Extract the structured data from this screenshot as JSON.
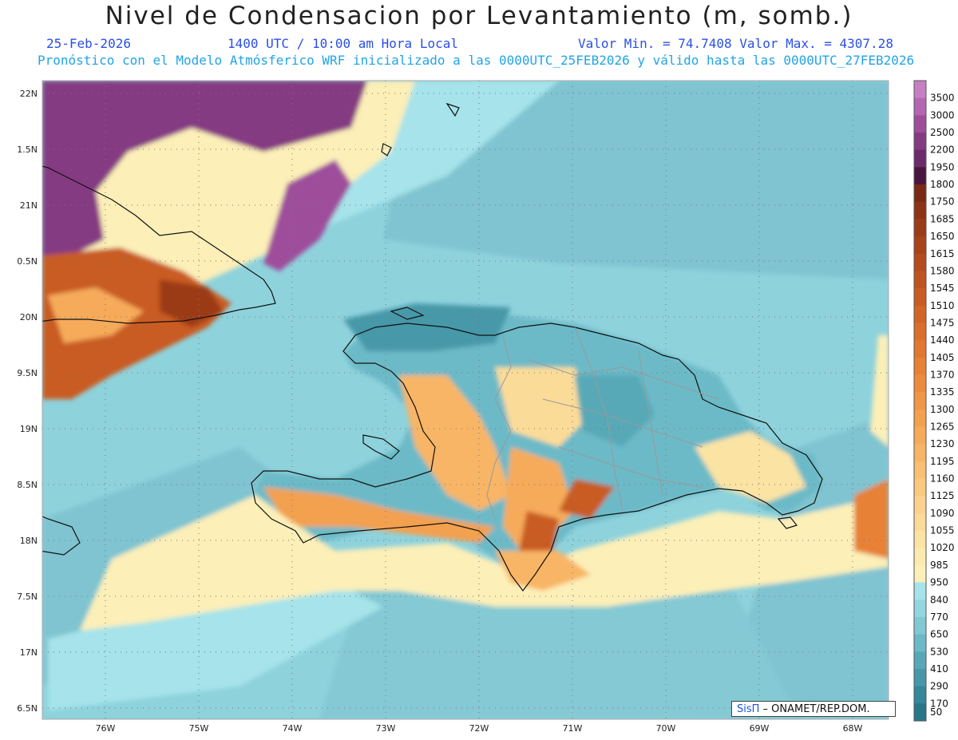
{
  "title": "Nivel de Condensacion por Levantamiento (m, somb.)",
  "date": "25-Feb-2026",
  "time": "1400 UTC / 10:00 am Hora Local",
  "minmax": "Valor Min. = 74.7408  Valor Max. = 4307.28",
  "subtitle": "Pronóstico con el Modelo Atmósferico WRF inicializado a las 0000UTC_25FEB2026 y válido hasta las  0000UTC_27FEB2026",
  "credit": {
    "sis": "SisΠ",
    "rest": " – ONAMET/REP.DOM."
  },
  "lat_labels": [
    "22N",
    "1.5N",
    "21N",
    "0.5N",
    "20N",
    "9.5N",
    "19N",
    "8.5N",
    "18N",
    "7.5N",
    "17N",
    "6.5N"
  ],
  "lon_labels": [
    "76W",
    "75W",
    "74W",
    "73W",
    "72W",
    "71W",
    "70W",
    "69W",
    "68W"
  ],
  "colorbar": {
    "labels": [
      "3500",
      "3000",
      "2500",
      "2200",
      "1950",
      "1800",
      "1750",
      "1685",
      "1650",
      "1615",
      "1580",
      "1545",
      "1510",
      "1475",
      "1440",
      "1405",
      "1370",
      "1335",
      "1300",
      "1265",
      "1230",
      "1195",
      "1160",
      "1125",
      "1090",
      "1055",
      "1020",
      "985",
      "950",
      "840",
      "770",
      "650",
      "530",
      "410",
      "290",
      "170",
      "50"
    ],
    "colors": [
      "#c77fc4",
      "#b466b2",
      "#9e4d9b",
      "#853a82",
      "#6d2a6b",
      "#4a1440",
      "#7a2a14",
      "#8c3416",
      "#9b3b17",
      "#a8431a",
      "#b44b1d",
      "#bf5420",
      "#c95c23",
      "#d26527",
      "#da6e2b",
      "#e17730",
      "#e78136",
      "#ec8b3d",
      "#f09645",
      "#f3a04f",
      "#f6ab5a",
      "#f8b566",
      "#f9bf72",
      "#fac97f",
      "#fbd28c",
      "#fbdb98",
      "#fbe3a4",
      "#fbeaaf",
      "#fcefb8",
      "#a6e3ea",
      "#94d6df",
      "#80c9d3",
      "#6cbac7",
      "#58a9b8",
      "#4698a9",
      "#35879a",
      "#28768a"
    ]
  },
  "colors": {
    "ocean": "#8ed2dc",
    "header_blue": "#2a4fe6",
    "header_cyan": "#22a4e6"
  }
}
